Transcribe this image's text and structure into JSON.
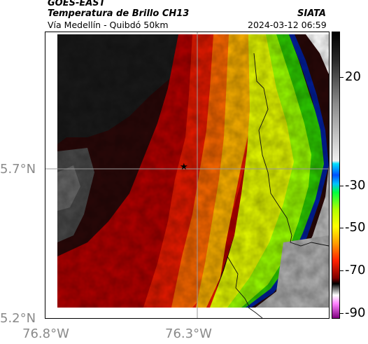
{
  "header": {
    "satellite": "GOES-EAST",
    "product": "Temperatura de Brillo CH13",
    "organization": "SIATA",
    "route": "Vía Medellín - Quibdó 50km",
    "datetime": "2024-03-12 06:59"
  },
  "map": {
    "lat_ticks": [
      "5.7°N",
      "5.2°N"
    ],
    "lon_ticks": [
      "76.8°W",
      "76.3°W"
    ],
    "marker_icon": "star-icon"
  },
  "colorbar": {
    "ticks": [
      "20",
      "-30",
      "-50",
      "-70",
      "-90"
    ]
  }
}
